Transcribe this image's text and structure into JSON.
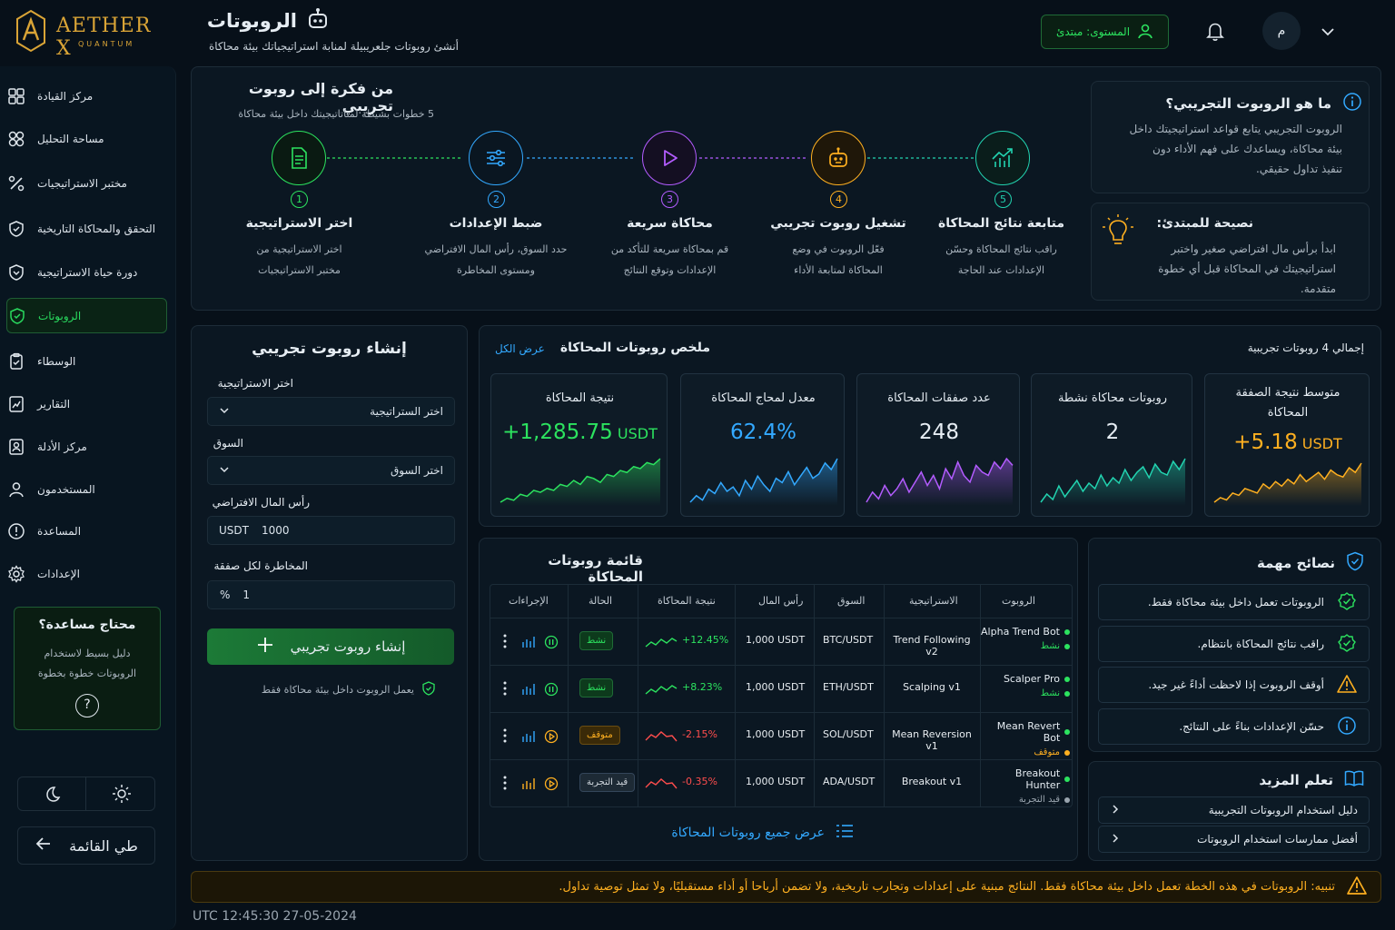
{
  "brand": {
    "name": "AETHER X",
    "sub": "QUANTUM"
  },
  "header": {
    "title": "الروبوتات",
    "subtitle": "أنشئ روبوتات جلعريبيلة لمنابة استراتيجياتك بيئة محاكاة",
    "level": "المستوى: مبتدئ",
    "avatar": "م"
  },
  "sidebar": {
    "items": [
      "مركز القيادة",
      "مساحة التحليل",
      "مختبر الاستراتيجيات",
      "التحقق والمحاكاة التاريخية",
      "دورة حياة الاستراتيجية",
      "الروبوتات",
      "الوسطاء",
      "التقارير",
      "مركز الأدلة",
      "المستخدمون",
      "المساعدة",
      "الإعدادات"
    ],
    "help_title": "محتاج مساعدة؟",
    "help_text1": "دليل بسيط لاستخدام",
    "help_text2": "الروبوتات خطوة بخطوة",
    "help_q": "?",
    "collapse": "طي القائمة"
  },
  "steps": {
    "title": "من فكرة إلى روبوت تجريبي",
    "subtitle": "5 خطوات بسيطة لمتاتاتيجيتك داخل بيئة محاكاة",
    "items": [
      {
        "n": "1",
        "title": "اختر الاستراتيجية",
        "d1": "اختر الاستراتيجية من",
        "d2": "مختبر الاستراتيجيات"
      },
      {
        "n": "2",
        "title": "ضبط الإعدادات",
        "d1": "حدد السوق، رأس المال الافتراضي",
        "d2": "ومستوى المخاطرة"
      },
      {
        "n": "3",
        "title": "محاكاة سريعة",
        "d1": "قم بمحاكاة سريعة للتأكد من",
        "d2": "الإعدادات وتوقع النتائج"
      },
      {
        "n": "4",
        "title": "تشغيل روبوت تجريبي",
        "d1": "فعّل الروبوت في وضع",
        "d2": "المحاكاة لمتابعة الأداء"
      },
      {
        "n": "5",
        "title": "متابعة نتائج المحاكاة",
        "d1": "راقب نتائج المحاكاة وحسّن",
        "d2": "الإعدادات عند الحاجة"
      }
    ]
  },
  "whatis": {
    "title": "ما هو الروبوت التجريبي؟",
    "l1": "الروبوت التجريبي يتابع قواعد استراتيجيتك داخل",
    "l2": "بيئة محاكاة، ويساعدك على فهم الأداء دون",
    "l3": "تنفيذ تداول حقيقي."
  },
  "advice": {
    "title": "نصيحة للمبتدئ:",
    "l1": "ابدأ برأس مال افتراضي صغير واختبر",
    "l2": "استراتيجيتك في المحاكاة قبل أي خطوة",
    "l3": "متقدمة."
  },
  "create": {
    "title": "إنشاء روبوت تجريبي",
    "strategy_label": "اختر الاستراتيجية",
    "strategy_value": "اختر الستراتيجية",
    "market_label": "السوق",
    "market_value": "اختر السوق",
    "capital_label": "رأس المال الافتراضي",
    "capital_unit": "USDT",
    "capital_value": "1000",
    "risk_label": "المخاطرة لكل صفقة",
    "risk_unit": "%",
    "risk_value": "1",
    "button": "إنشاء روبوت تجريبي",
    "note": "يعمل الروبوت داخل بيئة محاكاة فقط"
  },
  "summary": {
    "title": "ملخص روبوتات المحاكاة",
    "view_all": "عرض الكل",
    "total": "إجمالي 4 روبوتات تجريبية",
    "cards": [
      {
        "label": "نتيجة المحاكاة",
        "value": "+1,285.75",
        "unit": "USDT",
        "color": "#2ce35f",
        "spark": [
          3,
          5,
          4,
          7,
          6,
          9,
          8,
          10,
          9,
          12,
          11,
          14,
          12,
          16,
          15,
          13,
          17,
          16,
          19,
          18,
          21,
          20,
          23,
          22,
          25
        ]
      },
      {
        "label": "معدل لمحاج المحاكاة",
        "value": "62.4%",
        "unit": "",
        "color": "#33a9ff",
        "spark": [
          4,
          7,
          5,
          10,
          8,
          13,
          9,
          11,
          7,
          14,
          10,
          16,
          12,
          9,
          15,
          13,
          18,
          12,
          16,
          20,
          15,
          17,
          22,
          19,
          24
        ]
      },
      {
        "label": "عدد صفقات المحاكاة",
        "value": "248",
        "unit": "",
        "color": "#b35cff",
        "spark": [
          5,
          8,
          6,
          10,
          7,
          9,
          12,
          8,
          11,
          14,
          10,
          13,
          9,
          15,
          12,
          17,
          13,
          11,
          16,
          14,
          13,
          17,
          15,
          18,
          16
        ]
      },
      {
        "label": "روبوتات محاكاة نشطة",
        "value": "2",
        "unit": "",
        "color": "#22d3b0",
        "spark": [
          3,
          6,
          4,
          9,
          5,
          8,
          11,
          7,
          10,
          8,
          13,
          9,
          12,
          10,
          15,
          11,
          14,
          16,
          12,
          17,
          14,
          13,
          18,
          15,
          19
        ]
      },
      {
        "label": "متوسط نتيجة الصفقة المحاكاة",
        "value": "+5.18",
        "unit": "USDT",
        "color": "#ffb020",
        "spark": [
          4,
          6,
          5,
          8,
          7,
          10,
          9,
          8,
          12,
          10,
          13,
          11,
          14,
          12,
          16,
          13,
          15,
          17,
          14,
          18,
          16,
          15,
          19,
          17,
          21
        ]
      }
    ]
  },
  "table": {
    "title": "قائمة روبوتات المحاكاة",
    "headers": {
      "bot": "الروبوت",
      "strategy": "الاستراتيجية",
      "market": "السوق",
      "capital": "رأس المال",
      "result": "نتيجة المحاكاة",
      "status": "الحالة",
      "actions": "الإجراءات"
    },
    "rows": [
      {
        "name": "Alpha Trend Bot",
        "sub": "نشط",
        "strategy": "Trend Following v2",
        "market": "BTC/USDT",
        "capital": "1,000 USDT",
        "result": "+12.45%",
        "status": "نشط",
        "kind": "active"
      },
      {
        "name": "Scalper Pro",
        "sub": "نشط",
        "strategy": "Scalping v1",
        "market": "ETH/USDT",
        "capital": "1,000 USDT",
        "result": "+8.23%",
        "status": "نشط",
        "kind": "active"
      },
      {
        "name": "Mean Revert Bot",
        "sub": "متوقف",
        "strategy": "Mean Reversion v1",
        "market": "SOL/USDT",
        "capital": "1,000 USDT",
        "result": "-2.15%",
        "status": "متوقف",
        "kind": "stopped"
      },
      {
        "name": "Breakout Hunter",
        "sub": "قيد التجربة",
        "strategy": "Breakout v1",
        "market": "ADA/USDT",
        "capital": "1,000 USDT",
        "result": "-0.35%",
        "status": "قيد التجربة",
        "kind": "testing"
      }
    ],
    "view_all": "عرض جميع روبوتات المحاكاة"
  },
  "tips": {
    "title": "نصائح مهمة",
    "items": [
      "الروبوتات تعمل داخل بيئة محاكاة فقط.",
      "راقب نتائج المحاكاة بانتظام.",
      "أوقف الروبوت إذا لاحظت أداءً غير جيد.",
      "حسّن الإعدادات بناءً على النتائج."
    ]
  },
  "learn": {
    "title": "تعلم المزيد",
    "items": [
      "دليل استخدام الروبوتات التجريبية",
      "أفضل ممارسات استخدام الروبوتات"
    ]
  },
  "warning": "تنبيه: الروبوتات في هذه الخطة تعمل داخل بيئة محاكاة فقط. النتائج مبنية على إعدادات وتجارب تاريخية، ولا تضمن أرباحا أو أداء مستقبليًا، ولا تمثل توصية تداول.",
  "footer": {
    "time": "UTC 12:45:30 27-05-2024"
  },
  "colors": {
    "green": "#2ce35f",
    "blue": "#33a9ff",
    "purple": "#b35cff",
    "orange": "#ffb020",
    "teal": "#22d3b0",
    "gold": "#d9a436"
  }
}
